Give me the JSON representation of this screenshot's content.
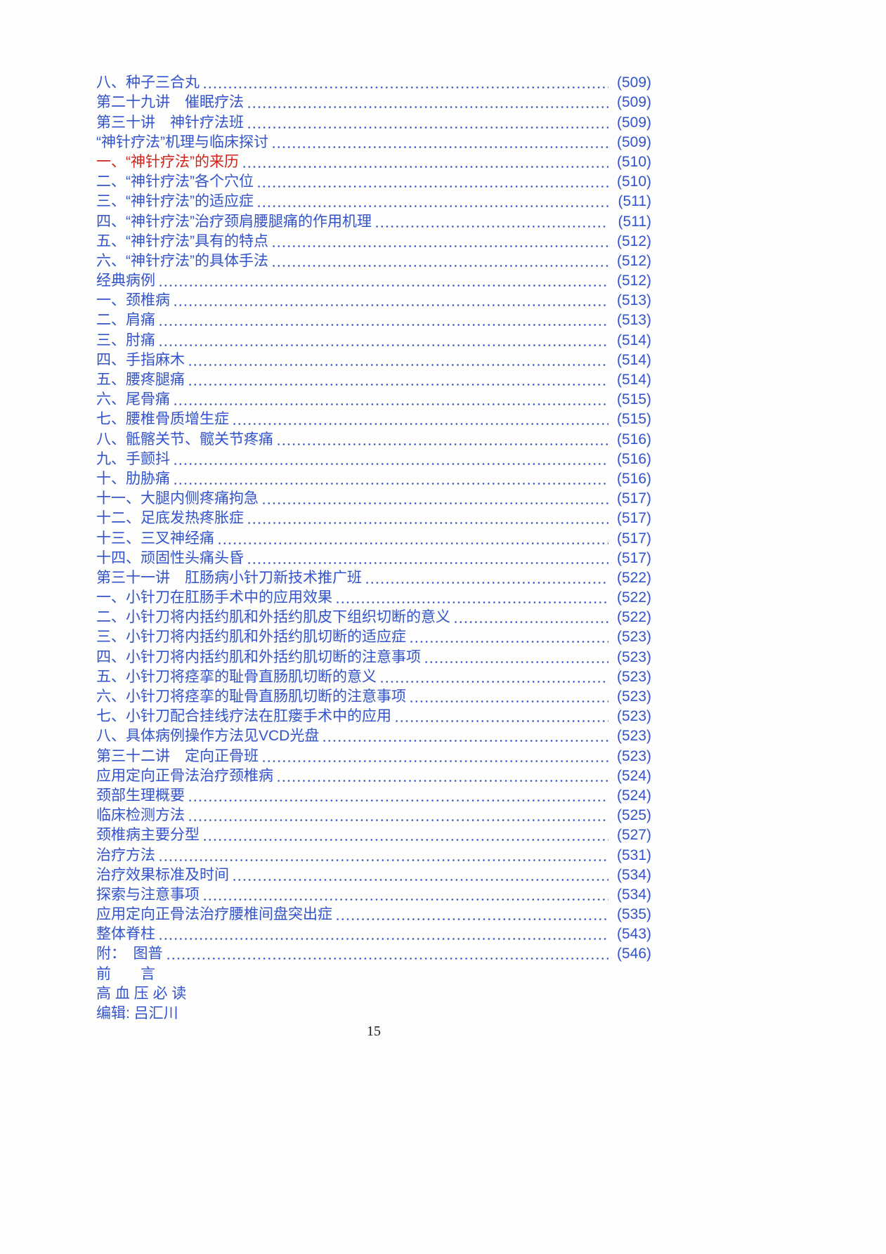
{
  "page": {
    "footer_page_number": "15",
    "colors": {
      "link_blue": "#3353cb",
      "highlight_red": "#d1221b",
      "footer_black": "#1c1c1c"
    }
  },
  "toc": {
    "entries": [
      {
        "label": "八、种子三合丸",
        "page": "(509)",
        "color": "blue"
      },
      {
        "label": "第二十九讲　催眠疗法",
        "page": "(509)",
        "color": "blue"
      },
      {
        "label": "第三十讲　神针疗法班",
        "page": "(509)",
        "color": "blue"
      },
      {
        "label": "“神针疗法”机理与临床探讨",
        "page": "(509)",
        "color": "blue"
      },
      {
        "label": "一、“神针疗法”的来历",
        "page": "(510)",
        "color": "red"
      },
      {
        "label": "二、“神针疗法”各个穴位",
        "page": "(510)",
        "color": "blue"
      },
      {
        "label": "三、“神针疗法”的适应症",
        "page": "(511)",
        "color": "blue"
      },
      {
        "label": "四、“神针疗法”治疗颈肩腰腿痛的作用机理",
        "page": "(511)",
        "color": "blue"
      },
      {
        "label": "五、“神针疗法”具有的特点",
        "page": "(512)",
        "color": "blue"
      },
      {
        "label": "六、“神针疗法”的具体手法",
        "page": "(512)",
        "color": "blue"
      },
      {
        "label": "经典病例",
        "page": "(512)",
        "color": "blue"
      },
      {
        "label": "一、颈椎病",
        "page": "(513)",
        "color": "blue"
      },
      {
        "label": "二、肩痛",
        "page": "(513)",
        "color": "blue"
      },
      {
        "label": "三、肘痛",
        "page": "(514)",
        "color": "blue"
      },
      {
        "label": "四、手指麻木",
        "page": "(514)",
        "color": "blue"
      },
      {
        "label": "五、腰疼腿痛",
        "page": "(514)",
        "color": "blue"
      },
      {
        "label": "六、尾骨痛",
        "page": "(515)",
        "color": "blue"
      },
      {
        "label": "七、腰椎骨质增生症",
        "page": "(515)",
        "color": "blue"
      },
      {
        "label": "八、骶髂关节、髋关节疼痛",
        "page": "(516)",
        "color": "blue"
      },
      {
        "label": "九、手颤抖",
        "page": "(516)",
        "color": "blue"
      },
      {
        "label": "十、肋胁痛",
        "page": "(516)",
        "color": "blue"
      },
      {
        "label": "十一、大腿内侧疼痛拘急",
        "page": "(517)",
        "color": "blue"
      },
      {
        "label": "十二、足底发热疼胀症",
        "page": "(517)",
        "color": "blue"
      },
      {
        "label": "十三、三叉神经痛",
        "page": "(517)",
        "color": "blue"
      },
      {
        "label": "十四、顽固性头痛头昏",
        "page": "(517)",
        "color": "blue"
      },
      {
        "label": "第三十一讲　肛肠病小针刀新技术推广班",
        "page": "(522)",
        "color": "blue"
      },
      {
        "label": "一、小针刀在肛肠手术中的应用效果",
        "page": "(522)",
        "color": "blue"
      },
      {
        "label": "二、小针刀将内括约肌和外括约肌皮下组织切断的意义",
        "page": "(522)",
        "color": "blue"
      },
      {
        "label": "三、小针刀将内括约肌和外括约肌切断的适应症",
        "page": "(523)",
        "color": "blue"
      },
      {
        "label": "四、小针刀将内括约肌和外括约肌切断的注意事项",
        "page": "(523)",
        "color": "blue"
      },
      {
        "label": "五、小针刀将痉挛的耻骨直肠肌切断的意义",
        "page": "(523)",
        "color": "blue"
      },
      {
        "label": "六、小针刀将痉挛的耻骨直肠肌切断的注意事项",
        "page": "(523)",
        "color": "blue"
      },
      {
        "label": "七、小针刀配合挂线疗法在肛瘘手术中的应用",
        "page": "(523)",
        "color": "blue"
      },
      {
        "label": "八、具体病例操作方法见VCD光盘",
        "page": "(523)",
        "color": "blue"
      },
      {
        "label": "第三十二讲　定向正骨班",
        "page": "(523)",
        "color": "blue"
      },
      {
        "label": "应用定向正骨法治疗颈椎病",
        "page": "(524)",
        "color": "blue"
      },
      {
        "label": "颈部生理概要",
        "page": "(524)",
        "color": "blue"
      },
      {
        "label": "临床检测方法",
        "page": "(525)",
        "color": "blue"
      },
      {
        "label": "颈椎病主要分型",
        "page": "(527)",
        "color": "blue"
      },
      {
        "label": "治疗方法",
        "page": "(531)",
        "color": "blue"
      },
      {
        "label": "治疗效果标准及时间",
        "page": "(534)",
        "color": "blue"
      },
      {
        "label": "探索与注意事项",
        "page": "(534)",
        "color": "blue"
      },
      {
        "label": "应用定向正骨法治疗腰椎间盘突出症",
        "page": "(535)",
        "color": "blue"
      },
      {
        "label": "整体脊柱",
        "page": "(543)",
        "color": "blue"
      },
      {
        "label": "附：　图普",
        "page": "(546)",
        "color": "blue"
      },
      {
        "label": "前　　言",
        "page": "",
        "color": "blue"
      },
      {
        "label": "高 血 压 必 读",
        "page": "",
        "color": "blue"
      },
      {
        "label": "编辑: 吕汇川",
        "page": "",
        "color": "blue"
      }
    ]
  }
}
